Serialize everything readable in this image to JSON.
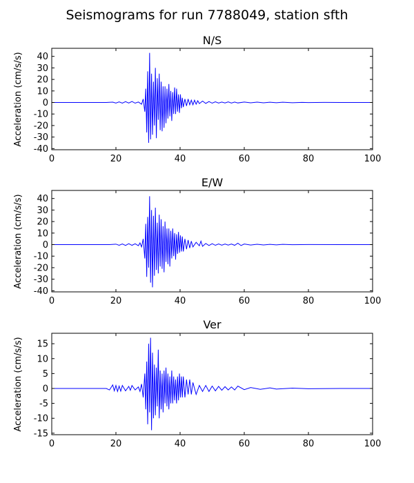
{
  "figure": {
    "title": "Seismograms for run 7788049, station sfth",
    "line_color": "#0000ff"
  },
  "chart_data": [
    {
      "type": "line",
      "title": "N/S",
      "xlabel": "",
      "ylabel": "Acceleration (cm/s/s)",
      "xlim": [
        0,
        100
      ],
      "ylim": [
        -41,
        47
      ],
      "xticks": [
        0,
        20,
        40,
        60,
        80,
        100
      ],
      "yticks": [
        -40,
        -30,
        -20,
        -10,
        0,
        10,
        20,
        30,
        40
      ],
      "grid": false,
      "series": [
        {
          "color": "#0000ff",
          "x": [
            0,
            17,
            19,
            20,
            21,
            22,
            23,
            24,
            25,
            26,
            27,
            28,
            28.5,
            29,
            29.3,
            29.6,
            29.9,
            30.2,
            30.5,
            30.8,
            31.1,
            31.4,
            31.7,
            32.0,
            32.3,
            32.6,
            32.9,
            33.2,
            33.5,
            33.8,
            34.1,
            34.4,
            34.7,
            35.0,
            35.3,
            35.6,
            35.9,
            36.2,
            36.5,
            36.8,
            37.1,
            37.4,
            37.7,
            38.0,
            38.3,
            38.6,
            38.9,
            39.2,
            39.5,
            39.8,
            40.1,
            40.4,
            40.7,
            41.0,
            41.5,
            42.0,
            42.5,
            43.0,
            43.5,
            44.0,
            44.5,
            45.0,
            45.5,
            46.0,
            47,
            48,
            49,
            50,
            51,
            52,
            53,
            54,
            55,
            56,
            57,
            58,
            60,
            62,
            64,
            66,
            68,
            70,
            72,
            75,
            78,
            80,
            85,
            90,
            100
          ],
          "y": [
            0,
            0,
            0.3,
            -0.5,
            0.5,
            -0.6,
            0.7,
            -0.5,
            0.9,
            -0.6,
            0.4,
            -1.5,
            3,
            -8,
            12,
            -26,
            27,
            -35,
            43,
            -32,
            25,
            -28,
            18,
            -20,
            30,
            -31,
            21,
            -15,
            25,
            -24,
            18,
            -25,
            14,
            -22,
            14,
            -18,
            12,
            -14,
            16,
            -12,
            10,
            -16,
            9,
            -10,
            13,
            -10,
            12,
            -8,
            7,
            -9,
            7,
            -5,
            4,
            -4,
            3,
            -3,
            3,
            -2,
            2,
            -2,
            2,
            -1.5,
            1.5,
            -1,
            1.2,
            -0.8,
            0.8,
            -0.6,
            0.6,
            -0.5,
            0.4,
            -0.4,
            0.5,
            -0.5,
            0.4,
            -0.4,
            0.4,
            -0.3,
            0.3,
            -0.3,
            0.2,
            -0.2,
            0.2,
            -0.2,
            0.1,
            -0.1,
            0.1,
            0,
            0
          ]
        }
      ]
    },
    {
      "type": "line",
      "title": "E/W",
      "xlabel": "",
      "ylabel": "Acceleration (cm/s/s)",
      "xlim": [
        0,
        100
      ],
      "ylim": [
        -41,
        47
      ],
      "xticks": [
        0,
        20,
        40,
        60,
        80,
        100
      ],
      "yticks": [
        -40,
        -30,
        -20,
        -10,
        0,
        10,
        20,
        30,
        40
      ],
      "grid": false,
      "series": [
        {
          "color": "#0000ff",
          "x": [
            0,
            18,
            20,
            21,
            22,
            23,
            24,
            25,
            26,
            27,
            27.5,
            28,
            28.5,
            29,
            29.3,
            29.6,
            29.9,
            30.2,
            30.5,
            30.8,
            31.1,
            31.4,
            31.7,
            32.0,
            32.3,
            32.6,
            32.9,
            33.2,
            33.5,
            33.8,
            34.1,
            34.4,
            34.7,
            35.0,
            35.3,
            35.6,
            35.9,
            36.2,
            36.5,
            36.8,
            37.1,
            37.4,
            37.7,
            38.0,
            38.3,
            38.6,
            38.9,
            39.2,
            39.5,
            39.8,
            40.1,
            40.4,
            40.7,
            41.0,
            41.5,
            42.0,
            42.5,
            43.0,
            43.5,
            44.0,
            45,
            46,
            46.5,
            47,
            48,
            49,
            50,
            51,
            52,
            53,
            54,
            55,
            56,
            57,
            58,
            59,
            60,
            62,
            64,
            66,
            68,
            70,
            72,
            75,
            80,
            90,
            100
          ],
          "y": [
            0,
            0,
            0.4,
            -0.6,
            0.6,
            -0.7,
            0.8,
            -0.6,
            0.7,
            -0.9,
            1.5,
            -2,
            5,
            -12,
            18,
            -28,
            24,
            -20,
            42,
            -33,
            30,
            -37,
            25,
            -27,
            32,
            -22,
            19,
            -25,
            26,
            -19,
            22,
            -21,
            16,
            -24,
            20,
            -15,
            14,
            -17,
            14,
            -19,
            12,
            -12,
            14,
            -10,
            10,
            -13,
            9,
            -8,
            11,
            -7,
            8,
            -6,
            7,
            -6,
            5,
            -4,
            4,
            -3,
            3,
            -2,
            2,
            -1,
            3,
            -1.5,
            1,
            -0.8,
            0.8,
            -0.6,
            0.6,
            -0.5,
            0.5,
            -0.4,
            0.5,
            -0.6,
            1.2,
            -0.8,
            0.5,
            -0.4,
            0.3,
            -0.3,
            0.2,
            -0.2,
            0.2,
            -0.1,
            0.1,
            0,
            0
          ]
        }
      ]
    },
    {
      "type": "line",
      "title": "Ver",
      "xlabel": "",
      "ylabel": "Acceleration (cm/s/s)",
      "xlim": [
        0,
        100
      ],
      "ylim": [
        -15.5,
        18.5
      ],
      "xticks": [
        0,
        20,
        40,
        60,
        80,
        100
      ],
      "yticks": [
        -15,
        -10,
        -5,
        0,
        5,
        10,
        15
      ],
      "grid": false,
      "series": [
        {
          "color": "#0000ff",
          "x": [
            0,
            17,
            18,
            19,
            19.5,
            20,
            20.5,
            21,
            21.5,
            22,
            23,
            24,
            24.5,
            25,
            26,
            27,
            27.5,
            28,
            28.5,
            29,
            29.3,
            29.6,
            29.9,
            30.2,
            30.5,
            30.8,
            31.1,
            31.4,
            31.7,
            32.0,
            32.3,
            32.6,
            32.9,
            33.2,
            33.5,
            33.8,
            34.1,
            34.4,
            34.7,
            35.0,
            35.3,
            35.6,
            35.9,
            36.2,
            36.5,
            36.8,
            37.1,
            37.4,
            37.7,
            38.0,
            38.3,
            38.6,
            38.9,
            39.2,
            39.5,
            39.8,
            40.1,
            40.4,
            40.7,
            41.0,
            41.5,
            42.0,
            42.5,
            43.0,
            43.5,
            44.0,
            45,
            46,
            47,
            48,
            49,
            50,
            51,
            52,
            53,
            54,
            55,
            56,
            57,
            58,
            60,
            62,
            65,
            68,
            70,
            75,
            80,
            90,
            100
          ],
          "y": [
            0,
            0,
            -0.5,
            1.2,
            -0.8,
            1,
            -1,
            0.8,
            -0.9,
            1,
            -0.8,
            0.7,
            -0.6,
            1,
            -0.5,
            0.5,
            -1,
            1.5,
            -3,
            5,
            -7,
            9,
            -12,
            15,
            -8,
            17,
            -14,
            12,
            -10,
            8,
            -9,
            7,
            -6,
            13,
            -10,
            6,
            -7,
            5,
            -8,
            6,
            -5,
            7,
            -6,
            5,
            -7,
            4,
            -5,
            6,
            -5,
            4,
            -4,
            3,
            -5,
            4,
            -4,
            5,
            -3,
            4,
            -3,
            4,
            -3,
            3,
            -2,
            3,
            -2,
            2,
            -2,
            1,
            -1,
            1,
            -1,
            0.8,
            -0.8,
            0.7,
            -0.6,
            0.6,
            -0.5,
            0.5,
            -0.5,
            0.8,
            -0.4,
            0.3,
            -0.3,
            0.2,
            -0.2,
            0.1,
            -0.1,
            0,
            0
          ]
        }
      ]
    }
  ]
}
